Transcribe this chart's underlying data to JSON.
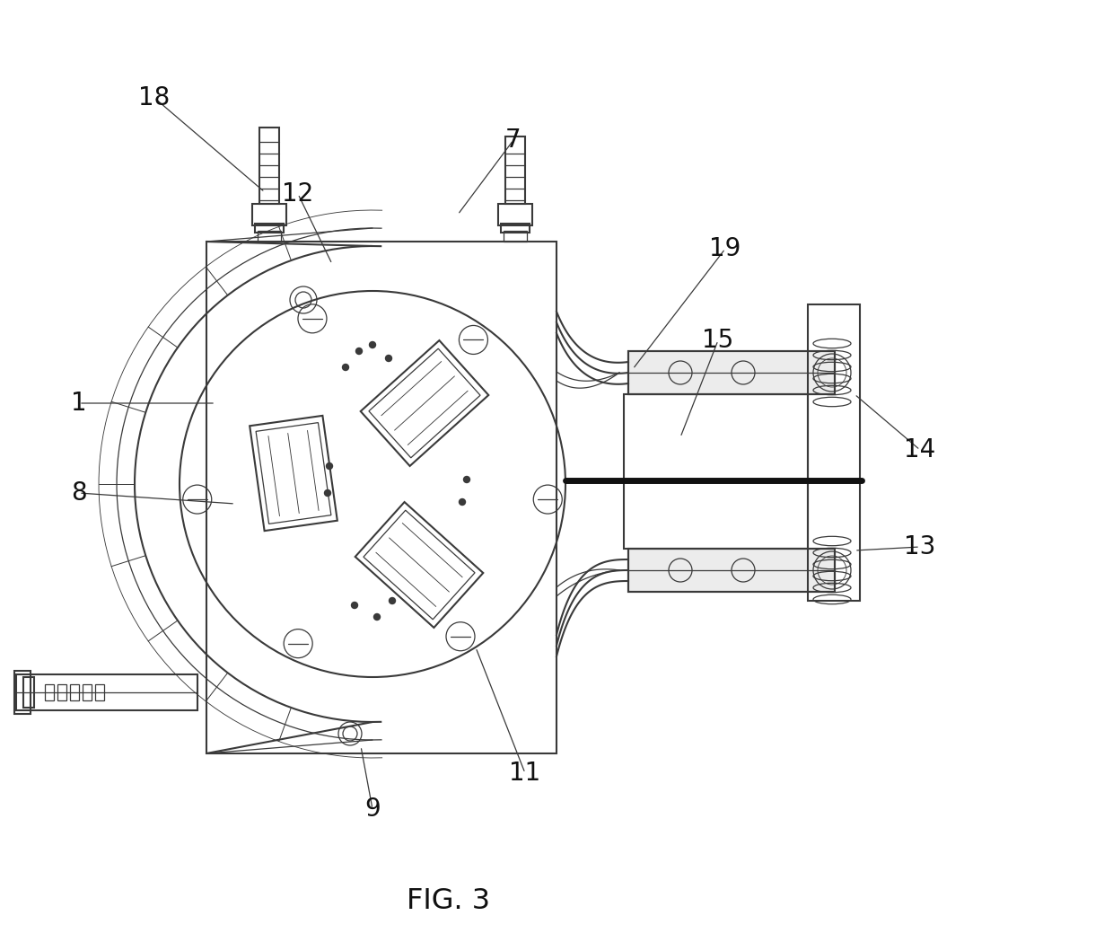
{
  "title": "FIG. 3",
  "bg_color": "#ffffff",
  "line_color": "#3a3a3a",
  "lw_main": 1.5,
  "lw_thin": 0.9,
  "lw_thick": 5.0,
  "labels_info": [
    [
      18,
      295,
      835,
      172,
      940
    ],
    [
      12,
      370,
      755,
      332,
      833
    ],
    [
      7,
      510,
      810,
      572,
      893
    ],
    [
      1,
      240,
      600,
      88,
      600
    ],
    [
      8,
      262,
      488,
      88,
      500
    ],
    [
      9,
      402,
      218,
      415,
      148
    ],
    [
      11,
      530,
      328,
      585,
      188
    ],
    [
      19,
      705,
      638,
      808,
      772
    ],
    [
      15,
      758,
      562,
      800,
      670
    ],
    [
      14,
      952,
      610,
      1025,
      548
    ],
    [
      13,
      952,
      436,
      1025,
      440
    ]
  ]
}
